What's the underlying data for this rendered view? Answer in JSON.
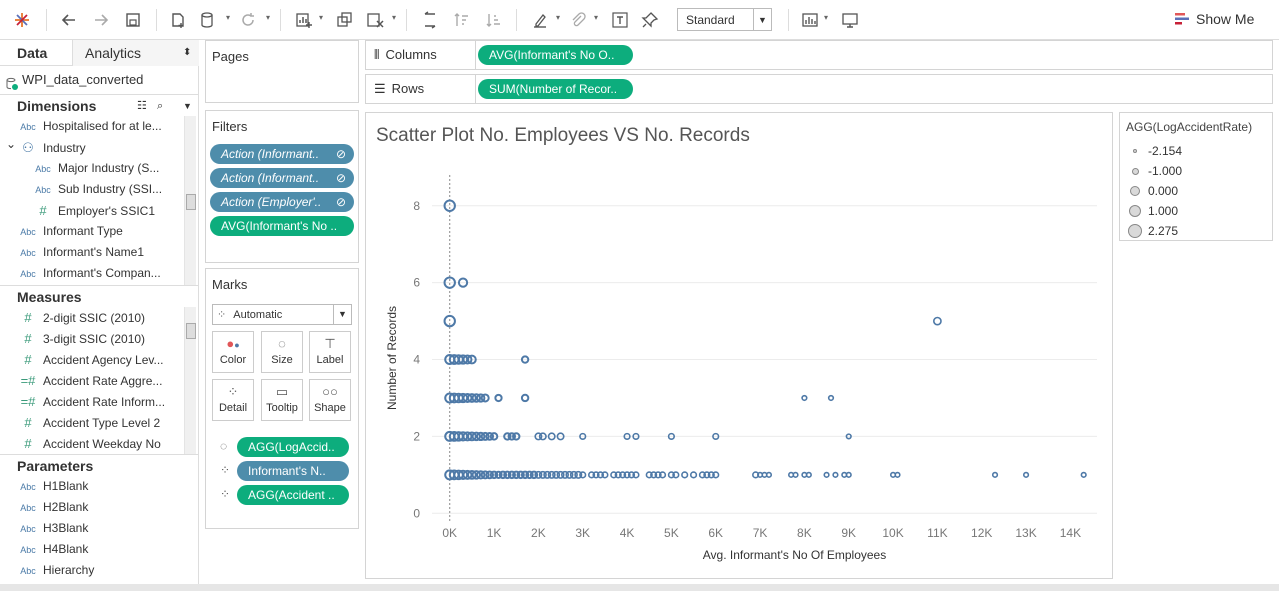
{
  "toolbar": {
    "standard_select": "Standard",
    "show_me": "Show Me"
  },
  "left_panel": {
    "tab_data": "Data",
    "tab_analytics": "Analytics",
    "datasource": "WPI_data_converted",
    "dimensions_title": "Dimensions",
    "dimensions": [
      {
        "type": "Abc",
        "label": "Hospitalised for at le..."
      },
      {
        "type": "hier",
        "label": "Industry"
      },
      {
        "type": "Abc",
        "label": "Major Industry (S..."
      },
      {
        "type": "Abc",
        "label": "Sub Industry  (SSI..."
      },
      {
        "type": "#",
        "label": "Employer's SSIC1"
      },
      {
        "type": "Abc",
        "label": "Informant Type"
      },
      {
        "type": "Abc",
        "label": "Informant's  Name1"
      },
      {
        "type": "Abc",
        "label": "Informant's Compan..."
      }
    ],
    "measures_title": "Measures",
    "measures": [
      {
        "type": "#",
        "label": "2-digit SSIC (2010)"
      },
      {
        "type": "#",
        "label": "3-digit SSIC (2010)"
      },
      {
        "type": "#",
        "label": "Accident Agency Lev..."
      },
      {
        "type": "=#",
        "label": "Accident Rate Aggre..."
      },
      {
        "type": "=#",
        "label": "Accident Rate Inform..."
      },
      {
        "type": "#",
        "label": "Accident Type Level 2"
      },
      {
        "type": "#",
        "label": "Accident Weekday No"
      }
    ],
    "parameters_title": "Parameters",
    "parameters": [
      {
        "type": "Abc",
        "label": "H1Blank"
      },
      {
        "type": "Abc",
        "label": "H2Blank"
      },
      {
        "type": "Abc",
        "label": "H3Blank"
      },
      {
        "type": "Abc",
        "label": "H4Blank"
      },
      {
        "type": "Abc",
        "label": "Hierarchy"
      }
    ]
  },
  "pages": {
    "title": "Pages"
  },
  "filters": {
    "title": "Filters",
    "pills": [
      "Action (Informant..",
      "Action (Informant..",
      "Action (Employer'..",
      "AVG(Informant's No .."
    ]
  },
  "marks": {
    "title": "Marks",
    "type": "Automatic",
    "buttons": [
      "Color",
      "Size",
      "Label",
      "Detail",
      "Tooltip",
      "Shape"
    ],
    "pills": [
      "AGG(LogAccid..",
      "Informant's  N..",
      "AGG(Accident .."
    ]
  },
  "shelves": {
    "columns_label": "Columns",
    "columns_pill": "AVG(Informant's No O..",
    "rows_label": "Rows",
    "rows_pill": "SUM(Number of Recor.."
  },
  "legend": {
    "title": "AGG(LogAccidentRate)",
    "items": [
      "-2.154",
      "-1.000",
      "0.000",
      "1.000",
      "2.275"
    ]
  },
  "chart_data": {
    "type": "scatter",
    "title": "Scatter Plot No. Employees VS No. Records",
    "xlabel": "Avg. Informant's No Of Employees",
    "ylabel": "Number of Records",
    "xlim": [
      -400,
      14600
    ],
    "ylim": [
      -0.2,
      8.8
    ],
    "x_ticks": [
      0,
      1000,
      2000,
      3000,
      4000,
      5000,
      6000,
      7000,
      8000,
      9000,
      10000,
      11000,
      12000,
      13000,
      14000
    ],
    "x_tick_labels": [
      "0K",
      "1K",
      "2K",
      "3K",
      "4K",
      "5K",
      "6K",
      "7K",
      "8K",
      "9K",
      "10K",
      "11K",
      "12K",
      "13K",
      "14K"
    ],
    "y_ticks": [
      0,
      2,
      4,
      6,
      8
    ],
    "color": "#4e79a7",
    "grid": true,
    "points": [
      [
        0,
        8
      ],
      [
        0,
        6
      ],
      [
        300,
        6
      ],
      [
        0,
        5
      ],
      [
        0,
        4
      ],
      [
        100,
        4
      ],
      [
        200,
        4
      ],
      [
        300,
        4
      ],
      [
        400,
        4
      ],
      [
        500,
        4
      ],
      [
        1700,
        4
      ],
      [
        0,
        3
      ],
      [
        100,
        3
      ],
      [
        200,
        3
      ],
      [
        300,
        3
      ],
      [
        400,
        3
      ],
      [
        500,
        3
      ],
      [
        600,
        3
      ],
      [
        700,
        3
      ],
      [
        800,
        3
      ],
      [
        1100,
        3
      ],
      [
        1700,
        3
      ],
      [
        8000,
        3
      ],
      [
        8600,
        3
      ],
      [
        0,
        2
      ],
      [
        100,
        2
      ],
      [
        200,
        2
      ],
      [
        300,
        2
      ],
      [
        400,
        2
      ],
      [
        500,
        2
      ],
      [
        600,
        2
      ],
      [
        700,
        2
      ],
      [
        800,
        2
      ],
      [
        900,
        2
      ],
      [
        1000,
        2
      ],
      [
        1300,
        2
      ],
      [
        1400,
        2
      ],
      [
        1500,
        2
      ],
      [
        2000,
        2
      ],
      [
        2100,
        2
      ],
      [
        2300,
        2
      ],
      [
        2500,
        2
      ],
      [
        3000,
        2
      ],
      [
        4000,
        2
      ],
      [
        4200,
        2
      ],
      [
        5000,
        2
      ],
      [
        6000,
        2
      ],
      [
        9000,
        2
      ],
      [
        11000,
        5
      ],
      [
        0,
        1
      ],
      [
        100,
        1
      ],
      [
        200,
        1
      ],
      [
        300,
        1
      ],
      [
        400,
        1
      ],
      [
        500,
        1
      ],
      [
        600,
        1
      ],
      [
        700,
        1
      ],
      [
        800,
        1
      ],
      [
        900,
        1
      ],
      [
        1000,
        1
      ],
      [
        1100,
        1
      ],
      [
        1200,
        1
      ],
      [
        1300,
        1
      ],
      [
        1400,
        1
      ],
      [
        1500,
        1
      ],
      [
        1600,
        1
      ],
      [
        1700,
        1
      ],
      [
        1800,
        1
      ],
      [
        1900,
        1
      ],
      [
        2000,
        1
      ],
      [
        2100,
        1
      ],
      [
        2200,
        1
      ],
      [
        2300,
        1
      ],
      [
        2400,
        1
      ],
      [
        2500,
        1
      ],
      [
        2600,
        1
      ],
      [
        2700,
        1
      ],
      [
        2800,
        1
      ],
      [
        2900,
        1
      ],
      [
        3000,
        1
      ],
      [
        3200,
        1
      ],
      [
        3300,
        1
      ],
      [
        3400,
        1
      ],
      [
        3500,
        1
      ],
      [
        3700,
        1
      ],
      [
        3800,
        1
      ],
      [
        3900,
        1
      ],
      [
        4000,
        1
      ],
      [
        4100,
        1
      ],
      [
        4200,
        1
      ],
      [
        4500,
        1
      ],
      [
        4600,
        1
      ],
      [
        4700,
        1
      ],
      [
        4800,
        1
      ],
      [
        5000,
        1
      ],
      [
        5100,
        1
      ],
      [
        5300,
        1
      ],
      [
        5500,
        1
      ],
      [
        5700,
        1
      ],
      [
        5800,
        1
      ],
      [
        5900,
        1
      ],
      [
        6000,
        1
      ],
      [
        6900,
        1
      ],
      [
        7000,
        1
      ],
      [
        7100,
        1
      ],
      [
        7200,
        1
      ],
      [
        7700,
        1
      ],
      [
        7800,
        1
      ],
      [
        8000,
        1
      ],
      [
        8100,
        1
      ],
      [
        8500,
        1
      ],
      [
        8700,
        1
      ],
      [
        8900,
        1
      ],
      [
        9000,
        1
      ],
      [
        10000,
        1
      ],
      [
        10100,
        1
      ],
      [
        12300,
        1
      ],
      [
        13000,
        1
      ],
      [
        14300,
        1
      ]
    ]
  }
}
